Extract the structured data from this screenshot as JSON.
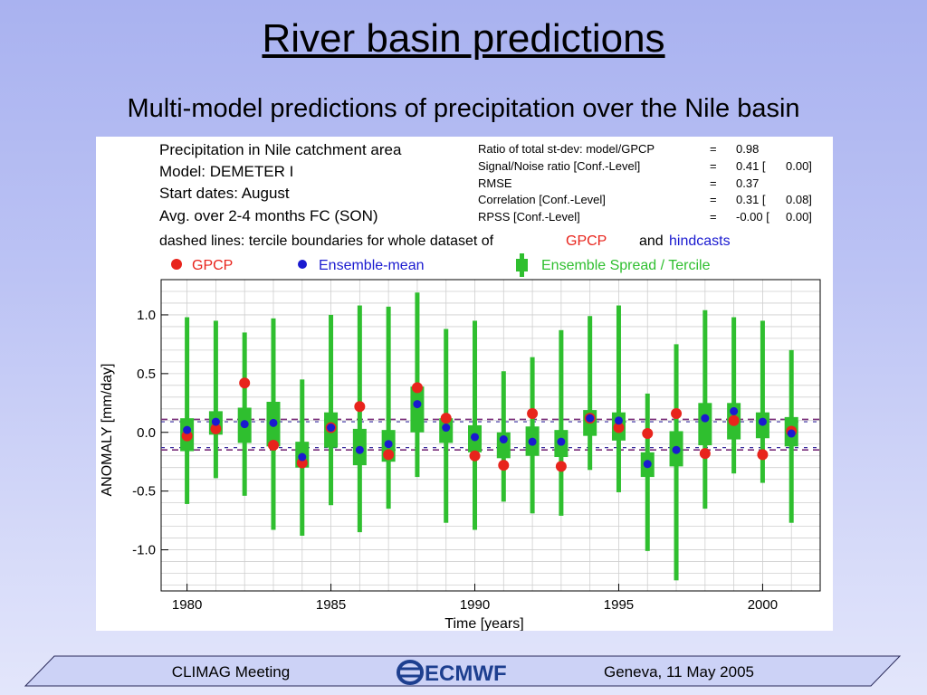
{
  "slide": {
    "title": "River basin predictions",
    "subtitle": "Multi-model predictions of precipitation over the Nile basin"
  },
  "footer": {
    "left": "CLIMAG Meeting",
    "logo_text": "ECMWF",
    "right": "Geneva, 11 May 2005"
  },
  "colors": {
    "gpcp": "#e8241c",
    "ensemble": "#1a1ad0",
    "spread": "#2fbf2f",
    "tercile_line": "#7a2f7a",
    "footer_bar": "#ccd2f6"
  },
  "chart_data": {
    "type": "scatter",
    "header_lines": [
      "Precipitation in Nile catchment area",
      "Model: DEMETER I",
      "Start dates: August",
      "Avg. over 2-4 months FC (SON)"
    ],
    "stats": [
      {
        "label": "Ratio of total st-dev: model/GPCP",
        "eq": "=",
        "value": "0.98",
        "conf": ""
      },
      {
        "label": "Signal/Noise ratio [Conf.-Level]",
        "eq": "=",
        "value": "0.41 [",
        "conf": "0.00]"
      },
      {
        "label": "RMSE",
        "eq": "=",
        "value": "0.37",
        "conf": ""
      },
      {
        "label": "Correlation [Conf.-Level]",
        "eq": "=",
        "value": "0.31 [",
        "conf": "0.08]"
      },
      {
        "label": "RPSS [Conf.-Level]",
        "eq": "=",
        "value": "-0.00 [",
        "conf": "0.00]"
      }
    ],
    "dashed_note": {
      "prefix": "dashed lines: tercile boundaries for whole dataset of",
      "gpcp": "GPCP",
      "and": "and",
      "hindcasts": "hindcasts"
    },
    "legend": {
      "gpcp": "GPCP",
      "ensemble": "Ensemble-mean",
      "spread": "Ensemble Spread / Tercile"
    },
    "xlabel": "Time [years]",
    "ylabel": "ANOMALY [mm/day]",
    "xlim": [
      1979.1,
      2002.0
    ],
    "ylim": [
      -1.35,
      1.3
    ],
    "x_ticks": [
      1980,
      1985,
      1990,
      1995,
      2000
    ],
    "y_ticks": [
      1.0,
      0.5,
      0.0,
      -0.5,
      -1.0
    ],
    "y_tick_labels": [
      "1.0",
      "0.5",
      "0.0",
      "-0.5",
      "-1.0"
    ],
    "tercile_lines": {
      "gpcp": [
        0.11,
        -0.15
      ],
      "hindcasts": [
        0.09,
        -0.13
      ]
    },
    "years": [
      1980,
      1981,
      1982,
      1983,
      1984,
      1985,
      1986,
      1987,
      1988,
      1989,
      1990,
      1991,
      1992,
      1993,
      1994,
      1995,
      1996,
      1997,
      1998,
      1999,
      2000,
      2001
    ],
    "spread_min": [
      -0.61,
      -0.39,
      -0.54,
      -0.83,
      -0.88,
      -0.62,
      -0.85,
      -0.65,
      -0.38,
      -0.77,
      -0.83,
      -0.59,
      -0.69,
      -0.71,
      -0.32,
      -0.51,
      -1.01,
      -1.26,
      -0.65,
      -0.35,
      -0.43,
      -0.77
    ],
    "spread_max": [
      0.98,
      0.95,
      0.85,
      0.97,
      0.45,
      1.0,
      1.08,
      1.07,
      1.19,
      0.88,
      0.95,
      0.52,
      0.64,
      0.87,
      0.99,
      1.08,
      0.33,
      0.75,
      1.04,
      0.98,
      0.95,
      0.7
    ],
    "tercile_low": [
      -0.16,
      -0.02,
      -0.09,
      -0.12,
      -0.3,
      -0.13,
      -0.28,
      -0.25,
      0.0,
      -0.09,
      -0.17,
      -0.22,
      -0.2,
      -0.21,
      -0.03,
      -0.07,
      -0.38,
      -0.29,
      -0.11,
      -0.06,
      -0.05,
      -0.12
    ],
    "tercile_high": [
      0.12,
      0.18,
      0.21,
      0.26,
      -0.08,
      0.17,
      0.03,
      0.02,
      0.39,
      0.12,
      0.06,
      0.0,
      0.05,
      0.02,
      0.19,
      0.17,
      -0.17,
      0.01,
      0.25,
      0.25,
      0.17,
      0.13
    ],
    "gpcp_values": [
      -0.03,
      0.03,
      0.42,
      -0.11,
      -0.26,
      0.04,
      0.22,
      -0.19,
      0.38,
      0.12,
      -0.2,
      -0.28,
      0.16,
      -0.29,
      0.12,
      0.04,
      -0.01,
      0.16,
      -0.18,
      0.1,
      -0.19,
      0.01
    ],
    "ensemble_values": [
      0.02,
      0.09,
      0.07,
      0.08,
      -0.21,
      0.04,
      -0.15,
      -0.1,
      0.24,
      0.04,
      -0.04,
      -0.06,
      -0.08,
      -0.08,
      0.12,
      0.1,
      -0.27,
      -0.15,
      0.12,
      0.18,
      0.09,
      -0.01
    ],
    "grid": true
  }
}
